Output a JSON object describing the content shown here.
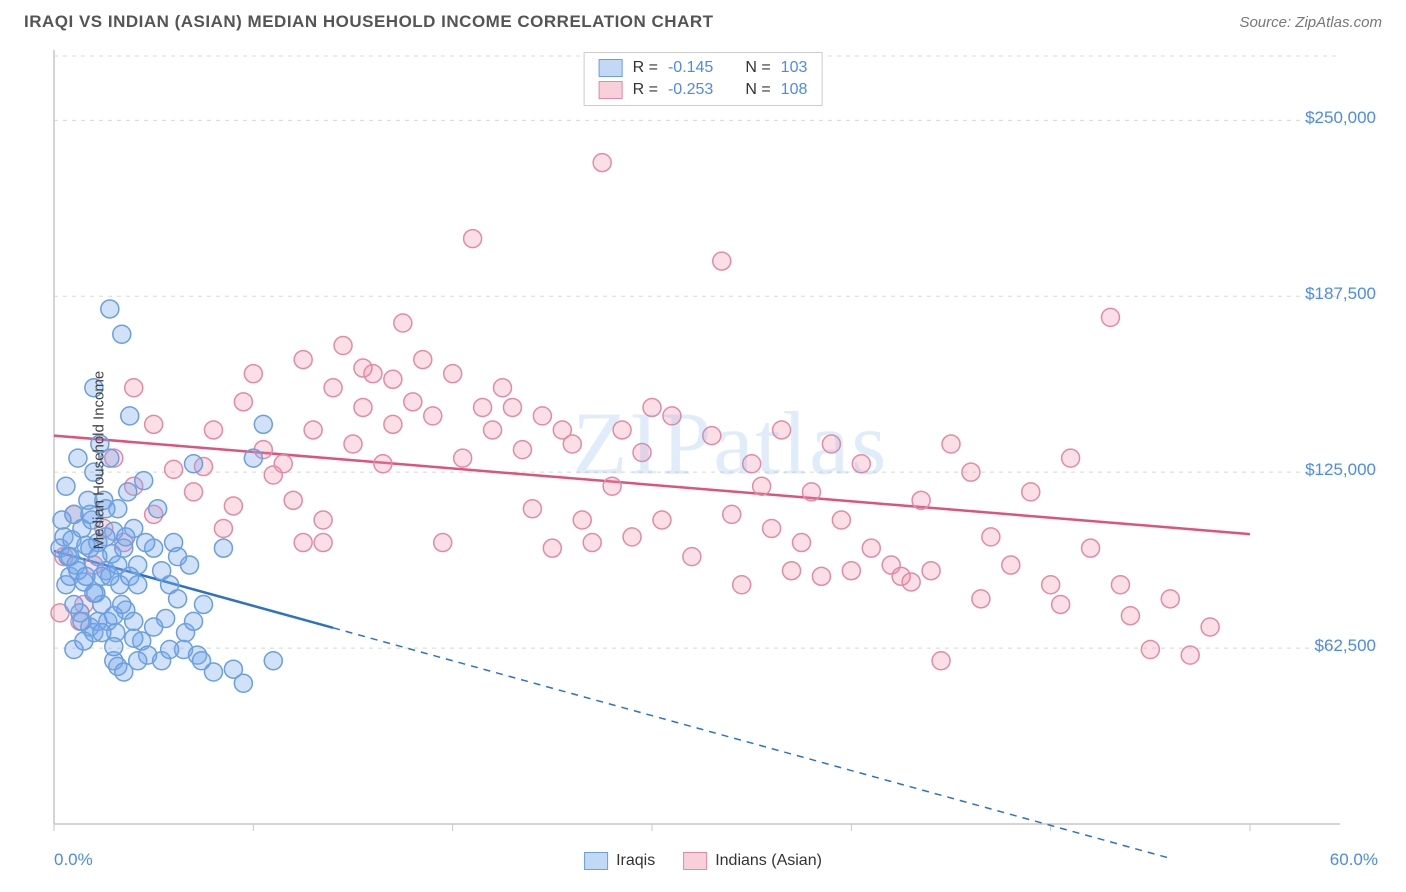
{
  "header": {
    "title": "IRAQI VS INDIAN (ASIAN) MEDIAN HOUSEHOLD INCOME CORRELATION CHART",
    "source": "Source: ZipAtlas.com"
  },
  "watermark": "ZIPatlas",
  "chart": {
    "type": "scatter",
    "ylabel": "Median Household Income",
    "background_color": "#ffffff",
    "grid_color": "#d8d8d8",
    "axis_color": "#c7c7c7",
    "xlim": [
      0,
      60
    ],
    "ylim": [
      0,
      275000
    ],
    "x_ticks": [
      0,
      10,
      20,
      30,
      40,
      50,
      60
    ],
    "x_tick_labels": {
      "first": "0.0%",
      "last": "60.0%"
    },
    "y_ticks": [
      62500,
      125000,
      187500,
      250000
    ],
    "y_tick_labels": [
      "$62,500",
      "$125,000",
      "$187,500",
      "$250,000"
    ],
    "label_color": "#4a8af4",
    "label_fontsize": 17,
    "marker_radius": 9,
    "marker_stroke_width": 1.5,
    "trendline_width": 2.5,
    "series": [
      {
        "name": "Iraqis",
        "fill": "rgba(120,170,235,0.35)",
        "stroke": "#6a9fe0",
        "swatch_fill": "rgba(120,170,235,0.45)",
        "swatch_stroke": "#6a9fe0",
        "R": "-0.145",
        "N": "103",
        "trendline": {
          "y_at_x0": 97000,
          "y_at_x60": -20000,
          "color": "#2d72c9",
          "solid_until_x": 14
        },
        "points": [
          [
            0.3,
            98000
          ],
          [
            0.5,
            102000
          ],
          [
            0.6,
            85000
          ],
          [
            0.7,
            95000
          ],
          [
            0.8,
            88000
          ],
          [
            0.9,
            101000
          ],
          [
            1.0,
            110000
          ],
          [
            1.1,
            92000
          ],
          [
            1.2,
            130000
          ],
          [
            1.3,
            75000
          ],
          [
            1.4,
            105000
          ],
          [
            1.5,
            86000
          ],
          [
            1.6,
            99000
          ],
          [
            1.7,
            115000
          ],
          [
            1.8,
            70000
          ],
          [
            1.9,
            108000
          ],
          [
            2.0,
            125000
          ],
          [
            2.1,
            82000
          ],
          [
            2.2,
            100000
          ],
          [
            2.3,
            135000
          ],
          [
            2.4,
            78000
          ],
          [
            2.5,
            115000
          ],
          [
            2.6,
            90000
          ],
          [
            2.7,
            72000
          ],
          [
            2.8,
            183000
          ],
          [
            2.9,
            96000
          ],
          [
            3.0,
            104000
          ],
          [
            3.1,
            68000
          ],
          [
            3.2,
            112000
          ],
          [
            3.3,
            85000
          ],
          [
            3.4,
            174000
          ],
          [
            3.5,
            98000
          ],
          [
            3.6,
            76000
          ],
          [
            3.7,
            118000
          ],
          [
            3.8,
            145000
          ],
          [
            1.0,
            62000
          ],
          [
            1.5,
            65000
          ],
          [
            4.0,
            105000
          ],
          [
            4.2,
            92000
          ],
          [
            4.4,
            65000
          ],
          [
            4.5,
            122000
          ],
          [
            4.7,
            60000
          ],
          [
            5.0,
            98000
          ],
          [
            5.2,
            112000
          ],
          [
            5.4,
            58000
          ],
          [
            5.6,
            73000
          ],
          [
            5.8,
            85000
          ],
          [
            6.0,
            100000
          ],
          [
            6.2,
            80000
          ],
          [
            6.5,
            62000
          ],
          [
            6.8,
            92000
          ],
          [
            7.0,
            128000
          ],
          [
            7.2,
            60000
          ],
          [
            7.5,
            78000
          ],
          [
            8.0,
            54000
          ],
          [
            8.5,
            98000
          ],
          [
            9.0,
            55000
          ],
          [
            9.5,
            50000
          ],
          [
            2.0,
            155000
          ],
          [
            10.0,
            130000
          ],
          [
            10.5,
            142000
          ],
          [
            11.0,
            58000
          ],
          [
            3.0,
            58000
          ],
          [
            3.2,
            56000
          ],
          [
            3.5,
            54000
          ],
          [
            4.0,
            66000
          ],
          [
            4.2,
            58000
          ],
          [
            1.8,
            110000
          ],
          [
            2.0,
            68000
          ],
          [
            2.2,
            72000
          ],
          [
            2.4,
            88000
          ],
          [
            2.6,
            112000
          ],
          [
            0.4,
            108000
          ],
          [
            0.6,
            120000
          ],
          [
            0.8,
            95000
          ],
          [
            1.0,
            78000
          ],
          [
            1.2,
            90000
          ],
          [
            1.4,
            72000
          ],
          [
            1.6,
            88000
          ],
          [
            1.8,
            98000
          ],
          [
            2.0,
            82000
          ],
          [
            2.2,
            95000
          ],
          [
            2.4,
            68000
          ],
          [
            2.6,
            102000
          ],
          [
            2.8,
            88000
          ],
          [
            3.0,
            74000
          ],
          [
            3.2,
            92000
          ],
          [
            3.4,
            78000
          ],
          [
            3.6,
            102000
          ],
          [
            3.8,
            88000
          ],
          [
            4.0,
            72000
          ],
          [
            4.2,
            85000
          ],
          [
            4.6,
            100000
          ],
          [
            5.0,
            70000
          ],
          [
            5.4,
            90000
          ],
          [
            5.8,
            62000
          ],
          [
            6.2,
            95000
          ],
          [
            6.6,
            68000
          ],
          [
            7.0,
            72000
          ],
          [
            7.4,
            58000
          ],
          [
            2.8,
            130000
          ],
          [
            3.0,
            63000
          ]
        ]
      },
      {
        "name": "Indians (Asian)",
        "fill": "rgba(240,140,168,0.28)",
        "stroke": "#e48aa6",
        "swatch_fill": "rgba(240,140,168,0.42)",
        "swatch_stroke": "#e48aa6",
        "R": "-0.253",
        "N": "108",
        "trendline": {
          "y_at_x0": 138000,
          "y_at_x60": 103000,
          "color": "#e0527a",
          "solid_until_x": 60
        },
        "points": [
          [
            0.5,
            95000
          ],
          [
            1.0,
            110000
          ],
          [
            1.5,
            78000
          ],
          [
            2.0,
            92000
          ],
          [
            2.5,
            105000
          ],
          [
            3.0,
            130000
          ],
          [
            3.5,
            100000
          ],
          [
            4.0,
            120000
          ],
          [
            5.0,
            110000
          ],
          [
            6.0,
            126000
          ],
          [
            7.0,
            118000
          ],
          [
            8.0,
            140000
          ],
          [
            9.0,
            113000
          ],
          [
            10.0,
            160000
          ],
          [
            10.5,
            133000
          ],
          [
            11.0,
            124000
          ],
          [
            12.0,
            115000
          ],
          [
            12.5,
            165000
          ],
          [
            13.0,
            140000
          ],
          [
            13.5,
            100000
          ],
          [
            14.0,
            155000
          ],
          [
            14.5,
            170000
          ],
          [
            15.0,
            135000
          ],
          [
            15.5,
            148000
          ],
          [
            16.0,
            160000
          ],
          [
            16.5,
            128000
          ],
          [
            17.0,
            142000
          ],
          [
            17.5,
            178000
          ],
          [
            18.0,
            150000
          ],
          [
            18.5,
            165000
          ],
          [
            19.0,
            145000
          ],
          [
            19.5,
            100000
          ],
          [
            20.0,
            160000
          ],
          [
            20.5,
            130000
          ],
          [
            21.0,
            208000
          ],
          [
            21.5,
            148000
          ],
          [
            22.0,
            140000
          ],
          [
            22.5,
            155000
          ],
          [
            23.0,
            148000
          ],
          [
            23.5,
            133000
          ],
          [
            24.0,
            112000
          ],
          [
            24.5,
            145000
          ],
          [
            25.0,
            98000
          ],
          [
            25.5,
            140000
          ],
          [
            26.0,
            135000
          ],
          [
            26.5,
            108000
          ],
          [
            27.0,
            100000
          ],
          [
            27.5,
            235000
          ],
          [
            28.0,
            120000
          ],
          [
            28.5,
            140000
          ],
          [
            29.0,
            102000
          ],
          [
            29.5,
            132000
          ],
          [
            30.0,
            148000
          ],
          [
            30.5,
            108000
          ],
          [
            31.0,
            145000
          ],
          [
            32.0,
            95000
          ],
          [
            33.0,
            138000
          ],
          [
            33.5,
            200000
          ],
          [
            34.0,
            110000
          ],
          [
            34.5,
            85000
          ],
          [
            35.0,
            128000
          ],
          [
            35.5,
            120000
          ],
          [
            36.0,
            105000
          ],
          [
            36.5,
            140000
          ],
          [
            37.0,
            90000
          ],
          [
            37.5,
            100000
          ],
          [
            38.0,
            118000
          ],
          [
            38.5,
            88000
          ],
          [
            39.0,
            135000
          ],
          [
            39.5,
            108000
          ],
          [
            40.0,
            90000
          ],
          [
            40.5,
            128000
          ],
          [
            41.0,
            98000
          ],
          [
            42.0,
            92000
          ],
          [
            42.5,
            88000
          ],
          [
            43.0,
            86000
          ],
          [
            43.5,
            115000
          ],
          [
            44.0,
            90000
          ],
          [
            44.5,
            58000
          ],
          [
            45.0,
            135000
          ],
          [
            46.0,
            125000
          ],
          [
            46.5,
            80000
          ],
          [
            47.0,
            102000
          ],
          [
            48.0,
            92000
          ],
          [
            49.0,
            118000
          ],
          [
            50.0,
            85000
          ],
          [
            50.5,
            78000
          ],
          [
            51.0,
            130000
          ],
          [
            52.0,
            98000
          ],
          [
            53.0,
            180000
          ],
          [
            53.5,
            85000
          ],
          [
            54.0,
            74000
          ],
          [
            55.0,
            62000
          ],
          [
            56.0,
            80000
          ],
          [
            57.0,
            60000
          ],
          [
            58.0,
            70000
          ],
          [
            7.5,
            127000
          ],
          [
            8.5,
            105000
          ],
          [
            9.5,
            150000
          ],
          [
            11.5,
            128000
          ],
          [
            12.5,
            100000
          ],
          [
            13.5,
            108000
          ],
          [
            5.0,
            142000
          ],
          [
            4.0,
            155000
          ],
          [
            0.3,
            75000
          ],
          [
            1.3,
            72000
          ],
          [
            15.5,
            162000
          ],
          [
            17.0,
            158000
          ]
        ]
      }
    ],
    "legend_bottom": [
      {
        "label": "Iraqis",
        "series_index": 0
      },
      {
        "label": "Indians (Asian)",
        "series_index": 1
      }
    ]
  }
}
